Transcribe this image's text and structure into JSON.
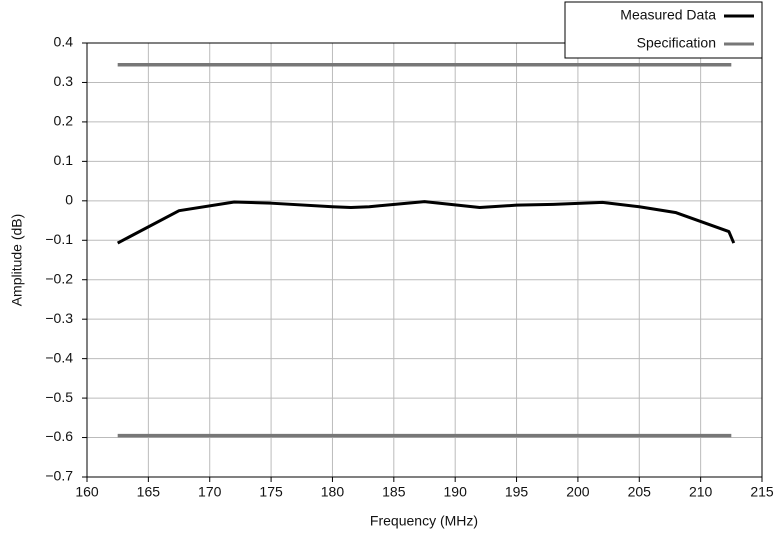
{
  "chart_data": {
    "type": "line",
    "xlabel": "Frequency (MHz)",
    "ylabel": "Amplitude (dB)",
    "xlim": [
      160,
      215
    ],
    "ylim": [
      -0.7,
      0.4
    ],
    "xticks": [
      160,
      165,
      170,
      175,
      180,
      185,
      190,
      195,
      200,
      205,
      210,
      215
    ],
    "yticks": [
      0.4,
      0.3,
      0.2,
      0.1,
      0,
      {
        "value": -0.1,
        "label": "−0.1"
      },
      {
        "value": -0.2,
        "label": "−0.2"
      },
      {
        "value": -0.3,
        "label": "−0.3"
      },
      {
        "value": -0.4,
        "label": "−0.4"
      },
      {
        "value": -0.5,
        "label": "−0.5"
      },
      {
        "value": -0.6,
        "label": "−0.6"
      },
      {
        "value": -0.7,
        "label": "−0.7"
      }
    ],
    "grid": true,
    "legend": "top-right",
    "series": [
      {
        "name": "Measured Data",
        "color": "#000000",
        "x": [
          162.5,
          167.5,
          172,
          175,
          180,
          181.5,
          183,
          187.5,
          192,
          195,
          198,
          202,
          205,
          208,
          212.3,
          212.7
        ],
        "values": [
          -0.107,
          -0.025,
          -0.003,
          -0.006,
          -0.015,
          -0.017,
          -0.015,
          -0.002,
          -0.017,
          -0.011,
          -0.009,
          -0.004,
          -0.015,
          -0.03,
          -0.078,
          -0.107
        ]
      },
      {
        "name": "Specification",
        "color": "#777777",
        "x": [
          162.5,
          212.5
        ],
        "upper": [
          0.345,
          0.345
        ],
        "lower": [
          -0.595,
          -0.595
        ]
      }
    ]
  }
}
